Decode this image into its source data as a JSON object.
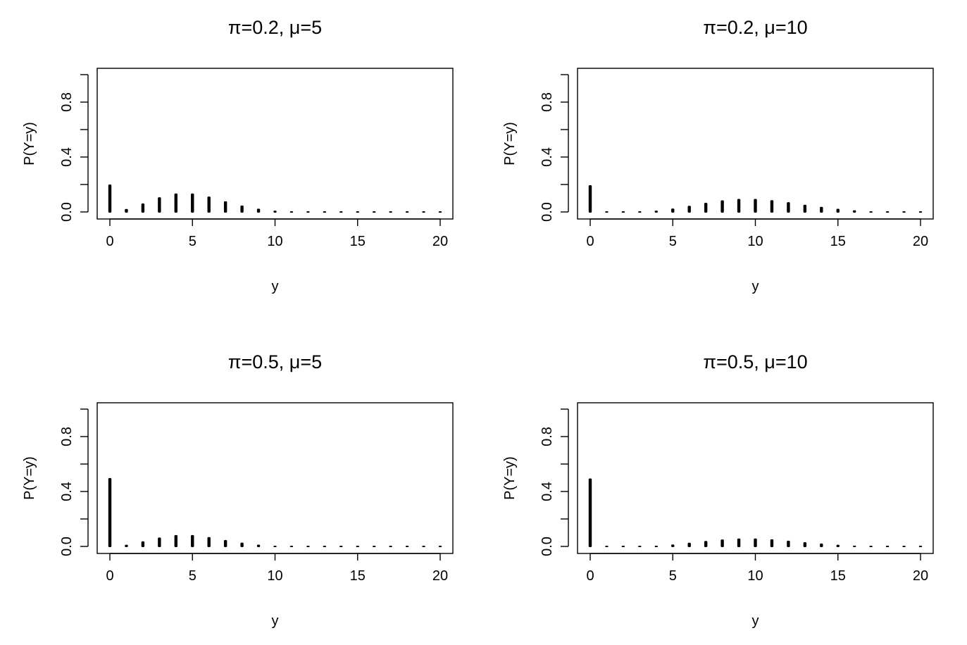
{
  "chart_data": [
    {
      "type": "bar",
      "title": "π=0.2, μ=5",
      "xlabel": "y",
      "ylabel": "P(Y=y)",
      "xlim": [
        0,
        20
      ],
      "ylim": [
        0,
        1
      ],
      "xticks": [
        "0",
        "5",
        "10",
        "15",
        "20"
      ],
      "yticks": [
        "0.0",
        "0.4",
        "0.8"
      ],
      "x": [
        0,
        1,
        2,
        3,
        4,
        5,
        6,
        7,
        8,
        9,
        10,
        11,
        12,
        13,
        14,
        15,
        16,
        17,
        18,
        19,
        20
      ],
      "values": [
        0.205,
        0.027,
        0.067,
        0.112,
        0.14,
        0.14,
        0.117,
        0.083,
        0.052,
        0.029,
        0.015,
        0.007,
        0.003,
        0.001,
        0.0005,
        0.0002,
        0,
        0,
        0,
        0,
        0
      ]
    },
    {
      "type": "bar",
      "title": "π=0.2, μ=10",
      "xlabel": "y",
      "ylabel": "P(Y=y)",
      "xlim": [
        0,
        20
      ],
      "ylim": [
        0,
        1
      ],
      "xticks": [
        "0",
        "5",
        "10",
        "15",
        "20"
      ],
      "yticks": [
        "0.0",
        "0.4",
        "0.8"
      ],
      "x": [
        0,
        1,
        2,
        3,
        4,
        5,
        6,
        7,
        8,
        9,
        10,
        11,
        12,
        13,
        14,
        15,
        16,
        17,
        18,
        19,
        20
      ],
      "values": [
        0.2,
        0.0004,
        0.002,
        0.006,
        0.015,
        0.03,
        0.05,
        0.072,
        0.09,
        0.1,
        0.1,
        0.091,
        0.076,
        0.058,
        0.042,
        0.028,
        0.017,
        0.01,
        0.006,
        0.003,
        0.001
      ]
    },
    {
      "type": "bar",
      "title": "π=0.5, μ=5",
      "xlabel": "y",
      "ylabel": "P(Y=y)",
      "xlim": [
        0,
        20
      ],
      "ylim": [
        0,
        1
      ],
      "xticks": [
        "0",
        "5",
        "10",
        "15",
        "20"
      ],
      "yticks": [
        "0.0",
        "0.4",
        "0.8"
      ],
      "x": [
        0,
        1,
        2,
        3,
        4,
        5,
        6,
        7,
        8,
        9,
        10,
        11,
        12,
        13,
        14,
        15,
        16,
        17,
        18,
        19,
        20
      ],
      "values": [
        0.503,
        0.017,
        0.042,
        0.07,
        0.088,
        0.088,
        0.073,
        0.052,
        0.033,
        0.018,
        0.009,
        0.004,
        0.002,
        0.001,
        0.0003,
        0.0001,
        0,
        0,
        0,
        0,
        0
      ]
    },
    {
      "type": "bar",
      "title": "π=0.5, μ=10",
      "xlabel": "y",
      "ylabel": "P(Y=y)",
      "xlim": [
        0,
        20
      ],
      "ylim": [
        0,
        1
      ],
      "xticks": [
        "0",
        "5",
        "10",
        "15",
        "20"
      ],
      "yticks": [
        "0.0",
        "0.4",
        "0.8"
      ],
      "x": [
        0,
        1,
        2,
        3,
        4,
        5,
        6,
        7,
        8,
        9,
        10,
        11,
        12,
        13,
        14,
        15,
        16,
        17,
        18,
        19,
        20
      ],
      "values": [
        0.5,
        0.0002,
        0.001,
        0.004,
        0.009,
        0.019,
        0.032,
        0.045,
        0.056,
        0.063,
        0.063,
        0.057,
        0.047,
        0.036,
        0.026,
        0.017,
        0.011,
        0.006,
        0.004,
        0.002,
        0.001
      ]
    }
  ]
}
